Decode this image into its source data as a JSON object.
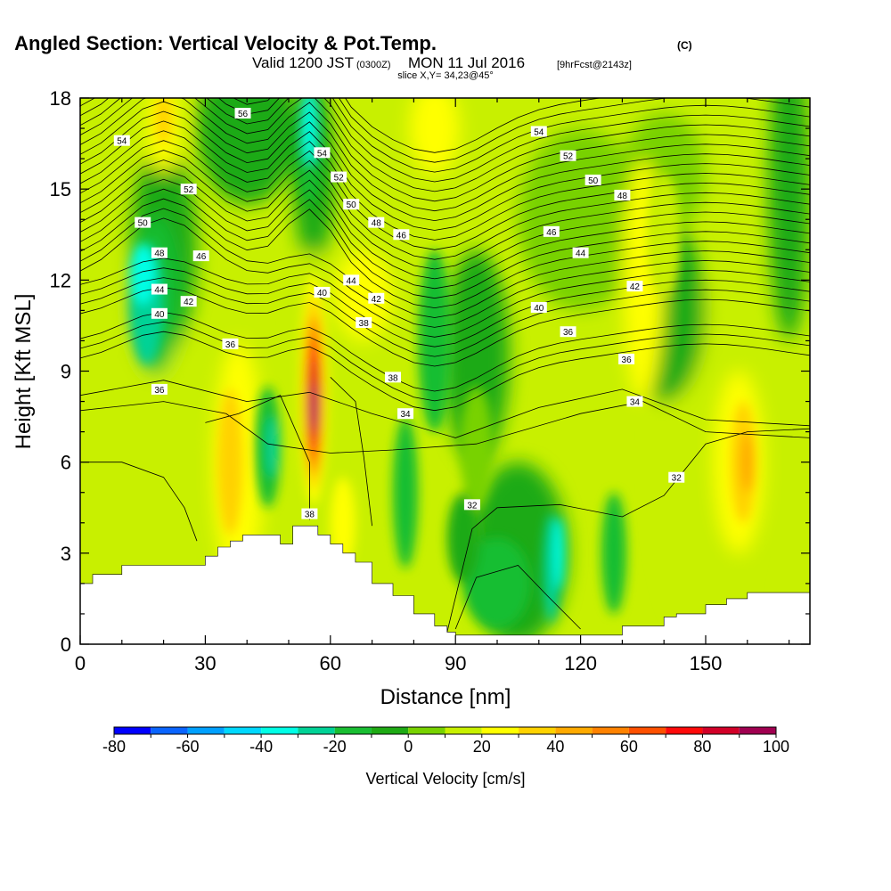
{
  "title": {
    "main": "Angled Section: Vertical Velocity & Pot.Temp.",
    "main_units": "(C)",
    "valid_prefix": "Valid 1200 JST",
    "valid_utc": "(0300Z)",
    "valid_date": "MON 11 Jul 2016",
    "forecast": "[9hrFcst@2143z]",
    "slice": "slice X,Y= 34,23@45°"
  },
  "chart_data": {
    "type": "heatmap",
    "xlabel": "Distance [nm]",
    "ylabel": "Height [Kft MSL]",
    "xlim": [
      0,
      175
    ],
    "ylim": [
      0,
      18
    ],
    "x_ticks": [
      0,
      30,
      60,
      90,
      120,
      150
    ],
    "y_ticks": [
      0,
      3,
      6,
      9,
      12,
      15,
      18
    ],
    "x_tick_labels": [
      "0",
      "30",
      "60",
      "90",
      "120",
      "150"
    ],
    "y_tick_labels": [
      "0",
      "3",
      "6",
      "9",
      "12",
      "15",
      "18"
    ],
    "colorbar": {
      "title": "Vertical Velocity [cm/s]",
      "levels": [
        -80,
        -70,
        -60,
        -50,
        -40,
        -30,
        -20,
        -10,
        0,
        10,
        20,
        30,
        40,
        50,
        60,
        70,
        80,
        90,
        100
      ],
      "tick_values": [
        -80,
        -60,
        -40,
        -20,
        0,
        20,
        40,
        60,
        80,
        100
      ],
      "tick_labels": [
        "-80",
        "-60",
        "-40",
        "-20",
        "0",
        "20",
        "40",
        "60",
        "80",
        "100"
      ],
      "colors": [
        "#0000ff",
        "#0a64ff",
        "#00a0ff",
        "#00d8ff",
        "#00ffe6",
        "#00d296",
        "#19be32",
        "#1eaa14",
        "#78d200",
        "#c8f000",
        "#ffff00",
        "#ffd200",
        "#ffaa00",
        "#ff8200",
        "#ff5000",
        "#ff0a0a",
        "#d20028",
        "#a00050",
        "#780078"
      ]
    },
    "terrain": {
      "x": [
        0,
        0,
        3,
        3,
        10,
        10,
        20,
        20,
        30,
        30,
        33,
        33,
        36,
        36,
        39,
        39,
        48,
        48,
        51,
        51,
        57,
        57,
        60,
        60,
        63,
        63,
        66,
        66,
        70,
        70,
        75,
        75,
        80,
        80,
        85,
        85,
        88,
        88,
        90,
        90,
        95,
        95,
        100,
        100,
        105,
        105,
        110,
        110,
        120,
        120,
        130,
        130,
        140,
        140,
        143,
        143,
        150,
        150,
        155,
        155,
        160,
        160,
        175
      ],
      "y": [
        0,
        2.0,
        2.0,
        2.3,
        2.3,
        2.6,
        2.6,
        2.6,
        2.6,
        2.9,
        2.9,
        3.2,
        3.2,
        3.4,
        3.4,
        3.6,
        3.6,
        3.3,
        3.3,
        3.9,
        3.9,
        3.6,
        3.6,
        3.3,
        3.3,
        3.0,
        3.0,
        2.7,
        2.7,
        2.0,
        2.0,
        1.6,
        1.6,
        1.0,
        1.0,
        0.6,
        0.6,
        0.4,
        0.4,
        0.3,
        0.3,
        0.3,
        0.3,
        0.3,
        0.3,
        0.3,
        0.3,
        0.3,
        0.3,
        0.3,
        0.3,
        0.6,
        0.6,
        0.9,
        0.9,
        1.0,
        1.0,
        1.3,
        1.3,
        1.5,
        1.5,
        1.7,
        1.7
      ]
    },
    "contour_labels": [
      {
        "text": "56",
        "x": 39,
        "y": 17.5
      },
      {
        "text": "54",
        "x": 10,
        "y": 16.6
      },
      {
        "text": "54",
        "x": 58,
        "y": 16.2
      },
      {
        "text": "54",
        "x": 110,
        "y": 16.9
      },
      {
        "text": "52",
        "x": 62,
        "y": 15.4
      },
      {
        "text": "52",
        "x": 117,
        "y": 16.1
      },
      {
        "text": "52",
        "x": 26,
        "y": 15.0
      },
      {
        "text": "50",
        "x": 65,
        "y": 14.5
      },
      {
        "text": "50",
        "x": 123,
        "y": 15.3
      },
      {
        "text": "50",
        "x": 15,
        "y": 13.9
      },
      {
        "text": "48",
        "x": 71,
        "y": 13.9
      },
      {
        "text": "48",
        "x": 130,
        "y": 14.8
      },
      {
        "text": "48",
        "x": 19,
        "y": 12.9
      },
      {
        "text": "46",
        "x": 29,
        "y": 12.8
      },
      {
        "text": "46",
        "x": 77,
        "y": 13.5
      },
      {
        "text": "46",
        "x": 113,
        "y": 13.6
      },
      {
        "text": "44",
        "x": 19,
        "y": 11.7
      },
      {
        "text": "44",
        "x": 65,
        "y": 12.0
      },
      {
        "text": "44",
        "x": 120,
        "y": 12.9
      },
      {
        "text": "42",
        "x": 26,
        "y": 11.3
      },
      {
        "text": "42",
        "x": 71,
        "y": 11.4
      },
      {
        "text": "42",
        "x": 133,
        "y": 11.8
      },
      {
        "text": "40",
        "x": 19,
        "y": 10.9
      },
      {
        "text": "40",
        "x": 58,
        "y": 11.6
      },
      {
        "text": "40",
        "x": 110,
        "y": 11.1
      },
      {
        "text": "38",
        "x": 68,
        "y": 10.6
      },
      {
        "text": "38",
        "x": 75,
        "y": 8.8
      },
      {
        "text": "38",
        "x": 55,
        "y": 4.3
      },
      {
        "text": "36",
        "x": 36,
        "y": 9.9
      },
      {
        "text": "36",
        "x": 19,
        "y": 8.4
      },
      {
        "text": "36",
        "x": 117,
        "y": 10.3
      },
      {
        "text": "36",
        "x": 131,
        "y": 9.4
      },
      {
        "text": "34",
        "x": 78,
        "y": 7.6
      },
      {
        "text": "34",
        "x": 133,
        "y": 8.0
      },
      {
        "text": "32",
        "x": 94,
        "y": 4.6
      },
      {
        "text": "32",
        "x": 143,
        "y": 5.5
      }
    ],
    "isotherm_levels": [
      32,
      34,
      36,
      38,
      40,
      42,
      44,
      46,
      48,
      50,
      52,
      54,
      56
    ]
  }
}
